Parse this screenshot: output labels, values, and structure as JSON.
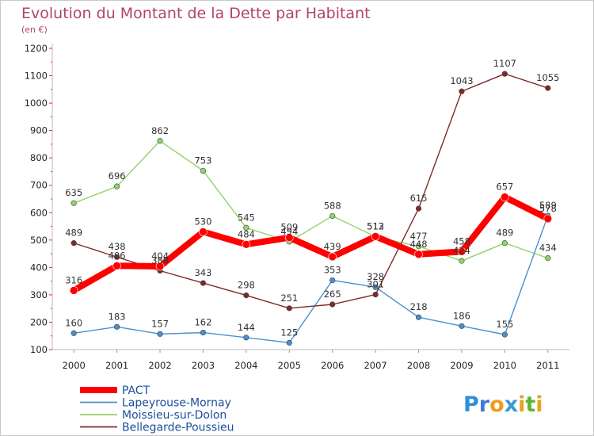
{
  "chart_data": {
    "type": "line",
    "title": "Evolution du Montant de la Dette par Habitant",
    "subtitle": "(en €)",
    "x": [
      "2000",
      "2001",
      "2002",
      "2003",
      "2004",
      "2005",
      "2006",
      "2007",
      "2008",
      "2009",
      "2010",
      "2011"
    ],
    "ylim": [
      100,
      1200
    ],
    "yticks": [
      100,
      200,
      300,
      400,
      500,
      600,
      700,
      800,
      900,
      1000,
      1100,
      1200
    ],
    "grid": false,
    "legend_position": "bottom-left",
    "series": [
      {
        "name": "PACT",
        "color": "#ff0000",
        "values": [
          316,
          406,
          404,
          530,
          484,
          509,
          439,
          513,
          448,
          458,
          657,
          578
        ]
      },
      {
        "name": "Lapeyrouse-Mornay",
        "color": "#4a8fd0",
        "values": [
          160,
          183,
          157,
          162,
          144,
          125,
          353,
          328,
          218,
          186,
          155,
          589
        ]
      },
      {
        "name": "Moissieu-sur-Dolon",
        "color": "#8fd46a",
        "values": [
          635,
          696,
          862,
          753,
          545,
          494,
          588,
          512,
          477,
          424,
          489,
          434
        ]
      },
      {
        "name": "Bellegarde-Poussieu",
        "color": "#7d2a2a",
        "values": [
          489,
          438,
          388,
          343,
          298,
          251,
          265,
          301,
          615,
          1043,
          1107,
          1055
        ]
      }
    ]
  },
  "brand": {
    "letters": [
      "P",
      "r",
      "o",
      "x",
      "i",
      "t",
      "i"
    ],
    "colors": [
      "#2f8fd8",
      "#3b7bd0",
      "#f39a1c",
      "#3a9ad9",
      "#e8a21e",
      "#59b533",
      "#e8a21e"
    ]
  }
}
